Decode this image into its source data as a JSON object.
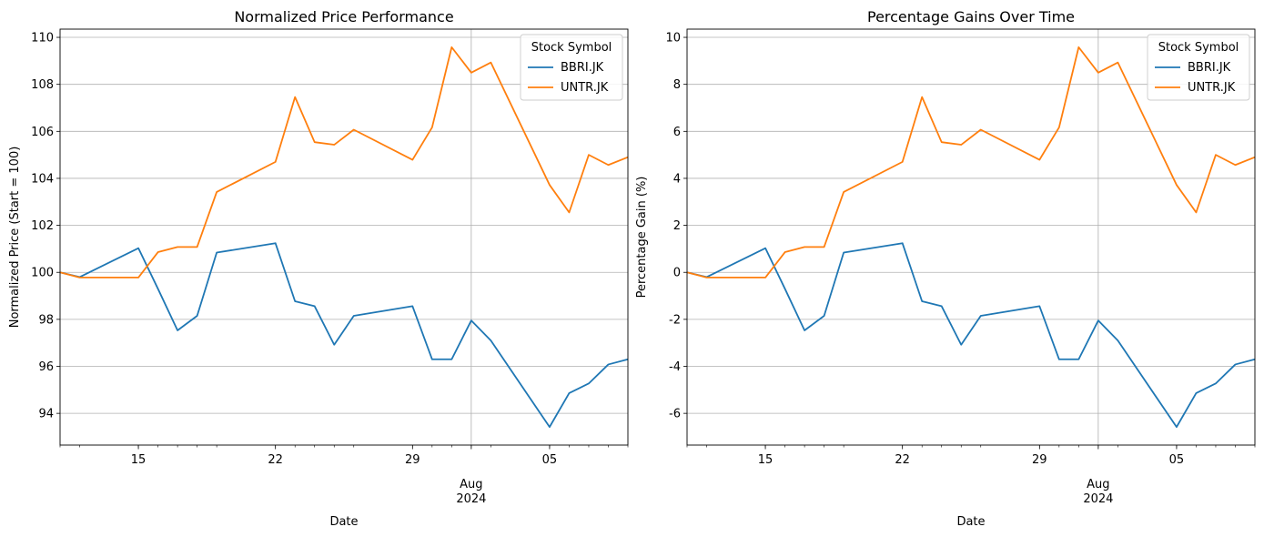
{
  "chart_data": [
    {
      "type": "line",
      "title": "Normalized Price Performance",
      "xlabel": "Date",
      "ylabel": "Normalized Price (Start = 100)",
      "x": [
        "2024-07-11",
        "2024-07-12",
        "2024-07-15",
        "2024-07-16",
        "2024-07-17",
        "2024-07-18",
        "2024-07-19",
        "2024-07-22",
        "2024-07-23",
        "2024-07-24",
        "2024-07-25",
        "2024-07-26",
        "2024-07-29",
        "2024-07-30",
        "2024-07-31",
        "2024-08-01",
        "2024-08-02",
        "2024-08-05",
        "2024-08-06",
        "2024-08-07",
        "2024-08-08",
        "2024-08-09"
      ],
      "x_major_ticks": [
        {
          "date": "2024-07-15",
          "label": "15"
        },
        {
          "date": "2024-07-22",
          "label": "22"
        },
        {
          "date": "2024-07-29",
          "label": "29"
        },
        {
          "date": "2024-08-05",
          "label": "05"
        }
      ],
      "x_month_tick": {
        "date": "2024-08-01",
        "label_line1": "Aug",
        "label_line2": "2024"
      },
      "xlim": [
        "2024-07-11",
        "2024-08-09"
      ],
      "ylim": [
        92.65,
        110.35
      ],
      "yticks": [
        94,
        96,
        98,
        100,
        102,
        104,
        106,
        108,
        110
      ],
      "grid": true,
      "legend": {
        "title": "Stock Symbol",
        "placement": "top-right"
      },
      "series": [
        {
          "name": "BBRI.JK",
          "color": "#1f77b4",
          "values": [
            100,
            99.8,
            101.03,
            99.3,
            97.53,
            98.15,
            100.84,
            101.24,
            98.77,
            98.56,
            96.92,
            98.15,
            98.56,
            96.3,
            96.3,
            97.95,
            97.1,
            93.42,
            94.86,
            95.27,
            96.08,
            96.3
          ]
        },
        {
          "name": "UNTR.JK",
          "color": "#ff7f0e",
          "values": [
            100,
            99.78,
            99.78,
            100.86,
            101.08,
            101.08,
            103.42,
            104.7,
            107.46,
            105.54,
            105.43,
            106.07,
            104.79,
            106.17,
            109.58,
            108.5,
            108.93,
            103.72,
            102.55,
            105.0,
            104.57,
            104.9
          ]
        }
      ]
    },
    {
      "type": "line",
      "title": "Percentage Gains Over Time",
      "xlabel": "Date",
      "ylabel": "Percentage Gain (%)",
      "x": [
        "2024-07-11",
        "2024-07-12",
        "2024-07-15",
        "2024-07-16",
        "2024-07-17",
        "2024-07-18",
        "2024-07-19",
        "2024-07-22",
        "2024-07-23",
        "2024-07-24",
        "2024-07-25",
        "2024-07-26",
        "2024-07-29",
        "2024-07-30",
        "2024-07-31",
        "2024-08-01",
        "2024-08-02",
        "2024-08-05",
        "2024-08-06",
        "2024-08-07",
        "2024-08-08",
        "2024-08-09"
      ],
      "x_major_ticks": [
        {
          "date": "2024-07-15",
          "label": "15"
        },
        {
          "date": "2024-07-22",
          "label": "22"
        },
        {
          "date": "2024-07-29",
          "label": "29"
        },
        {
          "date": "2024-08-05",
          "label": "05"
        }
      ],
      "x_month_tick": {
        "date": "2024-08-01",
        "label_line1": "Aug",
        "label_line2": "2024"
      },
      "xlim": [
        "2024-07-11",
        "2024-08-09"
      ],
      "ylim": [
        -7.35,
        10.35
      ],
      "yticks": [
        -6,
        -4,
        -2,
        0,
        2,
        4,
        6,
        8,
        10
      ],
      "grid": true,
      "legend": {
        "title": "Stock Symbol",
        "placement": "top-right"
      },
      "series": [
        {
          "name": "BBRI.JK",
          "color": "#1f77b4",
          "values": [
            0,
            -0.2,
            1.03,
            -0.7,
            -2.47,
            -1.85,
            0.84,
            1.24,
            -1.23,
            -1.44,
            -3.08,
            -1.85,
            -1.44,
            -3.7,
            -3.7,
            -2.05,
            -2.9,
            -6.58,
            -5.14,
            -4.73,
            -3.92,
            -3.7
          ]
        },
        {
          "name": "UNTR.JK",
          "color": "#ff7f0e",
          "values": [
            0,
            -0.22,
            -0.22,
            0.86,
            1.08,
            1.08,
            3.42,
            4.7,
            7.46,
            5.54,
            5.43,
            6.07,
            4.79,
            6.17,
            9.58,
            8.5,
            8.93,
            3.72,
            2.55,
            5.0,
            4.57,
            4.9
          ]
        }
      ]
    }
  ]
}
